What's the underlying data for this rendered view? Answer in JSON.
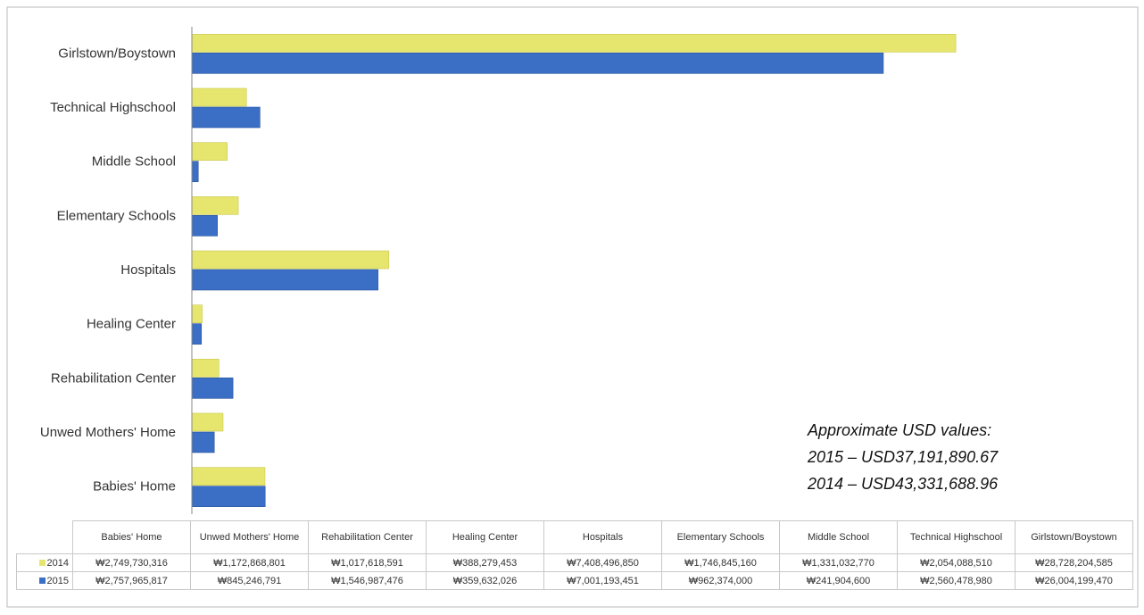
{
  "chart_data": {
    "type": "bar",
    "orientation": "horizontal",
    "categories": [
      "Babies' Home",
      "Unwed Mothers' Home",
      "Rehabilitation Center",
      "Healing Center",
      "Hospitals",
      "Elementary Schools",
      "Middle School",
      "Technical Highschool",
      "Girlstown/Boystown"
    ],
    "series": [
      {
        "name": "2014",
        "color": "#e6e66e",
        "values": [
          2749730316,
          1172868801,
          1017618591,
          388279453,
          7408496850,
          1746845160,
          1331032770,
          2054088510,
          28728204585
        ],
        "value_labels": [
          "₩2,749,730,316",
          "₩1,172,868,801",
          "₩1,017,618,591",
          "₩388,279,453",
          "₩7,408,496,850",
          "₩1,746,845,160",
          "₩1,331,032,770",
          "₩2,054,088,510",
          "₩28,728,204,585"
        ]
      },
      {
        "name": "2015",
        "color": "#3b6fc6",
        "values": [
          2757965817,
          845246791,
          1546987476,
          359632026,
          7001193451,
          962374000,
          241904600,
          2560478980,
          26004199470
        ],
        "value_labels": [
          "₩2,757,965,817",
          "₩845,246,791",
          "₩1,546,987,476",
          "₩359,632,026",
          "₩7,001,193,451",
          "₩962,374,000",
          "₩241,904,600",
          "₩2,560,478,980",
          "₩26,004,199,470"
        ]
      }
    ],
    "xlim": [
      0,
      35000000000
    ],
    "annotations": [
      "Approximate USD values:",
      "2015 – USD37,191,890.67",
      "2014 – USD43,331,688.96"
    ]
  }
}
